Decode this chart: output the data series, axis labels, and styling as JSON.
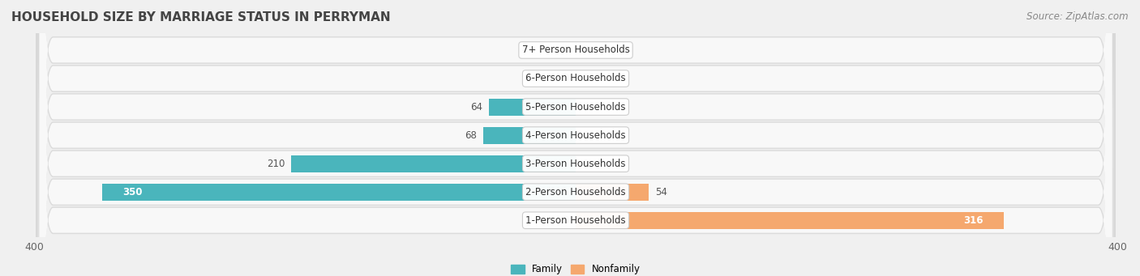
{
  "title": "HOUSEHOLD SIZE BY MARRIAGE STATUS IN PERRYMAN",
  "source": "Source: ZipAtlas.com",
  "categories": [
    "7+ Person Households",
    "6-Person Households",
    "5-Person Households",
    "4-Person Households",
    "3-Person Households",
    "2-Person Households",
    "1-Person Households"
  ],
  "family_values": [
    0,
    0,
    64,
    68,
    210,
    350,
    0
  ],
  "nonfamily_values": [
    0,
    0,
    0,
    0,
    0,
    54,
    316
  ],
  "family_color": "#4ab5bc",
  "nonfamily_color": "#f5a86e",
  "xlim": 400,
  "background_color": "#f0f0f0",
  "row_background_light": "#f8f8f8",
  "row_border": "#d8d8d8",
  "title_fontsize": 11,
  "label_fontsize": 8.5,
  "source_fontsize": 8.5,
  "axis_label_fontsize": 9
}
